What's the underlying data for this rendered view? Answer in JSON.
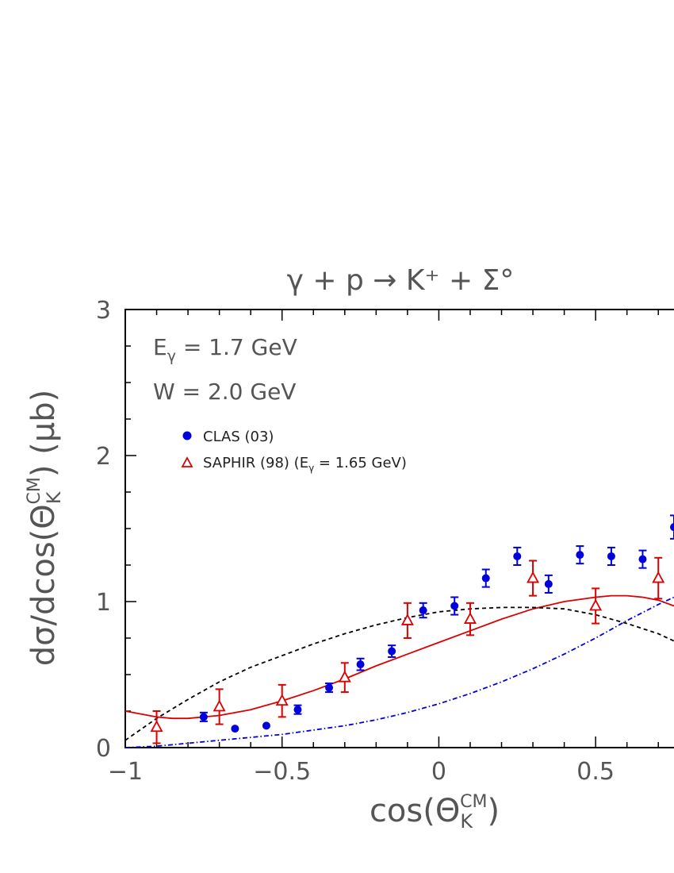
{
  "chart_data": {
    "type": "scatter",
    "title": "γ + p → K⁺ + Σ°",
    "xlabel": "cos(Θ_K^CM)",
    "ylabel": "dσ/dcos(Θ_K^CM) (μb)",
    "xlim": [
      -1,
      0.75
    ],
    "ylim": [
      0,
      3
    ],
    "x_ticks": [
      -1,
      -0.5,
      0,
      0.5
    ],
    "x_tick_labels": [
      "−1",
      "−0.5",
      "0",
      "0.5"
    ],
    "y_ticks": [
      0,
      1,
      2,
      3
    ],
    "y_tick_labels": [
      "0",
      "1",
      "2",
      "3"
    ],
    "annotations": [
      "E_γ = 1.7 GeV",
      "W = 2.0 GeV"
    ],
    "legend_position": "top-left",
    "series": [
      {
        "name": "CLAS (03)",
        "kind": "points",
        "marker": "filled-circle",
        "color": "#0000dd",
        "x": [
          -0.75,
          -0.65,
          -0.55,
          -0.45,
          -0.35,
          -0.25,
          -0.15,
          -0.05,
          0.05,
          0.15,
          0.25,
          0.35,
          0.45,
          0.55,
          0.65,
          0.75
        ],
        "y": [
          0.21,
          0.13,
          0.15,
          0.26,
          0.41,
          0.57,
          0.66,
          0.94,
          0.97,
          1.16,
          1.31,
          1.12,
          1.32,
          1.31,
          1.29,
          1.51
        ],
        "err": [
          0.03,
          0.0,
          0.0,
          0.03,
          0.03,
          0.04,
          0.04,
          0.05,
          0.06,
          0.06,
          0.06,
          0.06,
          0.06,
          0.06,
          0.06,
          0.08
        ]
      },
      {
        "name": "SAPHIR (98)",
        "label_suffix": "(E_γ = 1.65 GeV)",
        "kind": "points",
        "marker": "open-triangle",
        "color": "#dd0000",
        "x": [
          -0.9,
          -0.7,
          -0.5,
          -0.3,
          -0.1,
          0.1,
          0.3,
          0.5,
          0.7
        ],
        "y": [
          0.14,
          0.28,
          0.32,
          0.48,
          0.87,
          0.88,
          1.16,
          0.97,
          1.16
        ],
        "err": [
          0.11,
          0.12,
          0.11,
          0.1,
          0.12,
          0.11,
          0.12,
          0.12,
          0.14
        ]
      },
      {
        "kind": "line",
        "style": "solid",
        "color": "#dd0000",
        "x": [
          -1.0,
          -0.9,
          -0.85,
          -0.8,
          -0.7,
          -0.6,
          -0.5,
          -0.4,
          -0.3,
          -0.2,
          -0.1,
          0.0,
          0.1,
          0.2,
          0.3,
          0.4,
          0.5,
          0.55,
          0.6,
          0.65,
          0.7,
          0.75
        ],
        "y": [
          0.25,
          0.21,
          0.2,
          0.2,
          0.22,
          0.26,
          0.32,
          0.39,
          0.47,
          0.56,
          0.64,
          0.72,
          0.8,
          0.88,
          0.95,
          1.0,
          1.03,
          1.04,
          1.04,
          1.03,
          1.01,
          0.97
        ]
      },
      {
        "kind": "line",
        "style": "dashed",
        "color": "#000000",
        "x": [
          -1.0,
          -0.9,
          -0.8,
          -0.7,
          -0.6,
          -0.5,
          -0.4,
          -0.3,
          -0.2,
          -0.1,
          0.0,
          0.1,
          0.2,
          0.3,
          0.4,
          0.5,
          0.6,
          0.7,
          0.75
        ],
        "y": [
          0.05,
          0.2,
          0.33,
          0.45,
          0.55,
          0.63,
          0.71,
          0.78,
          0.84,
          0.89,
          0.93,
          0.95,
          0.96,
          0.96,
          0.95,
          0.91,
          0.85,
          0.78,
          0.73
        ]
      },
      {
        "kind": "line",
        "style": "dash-dot",
        "color": "#0000dd",
        "x": [
          -1.0,
          -0.9,
          -0.8,
          -0.7,
          -0.6,
          -0.5,
          -0.4,
          -0.3,
          -0.2,
          -0.1,
          0.0,
          0.1,
          0.2,
          0.3,
          0.4,
          0.5,
          0.6,
          0.7,
          0.75
        ],
        "y": [
          0.0,
          0.01,
          0.03,
          0.05,
          0.07,
          0.09,
          0.12,
          0.15,
          0.19,
          0.24,
          0.3,
          0.37,
          0.45,
          0.54,
          0.64,
          0.75,
          0.87,
          0.98,
          1.03
        ]
      }
    ]
  }
}
